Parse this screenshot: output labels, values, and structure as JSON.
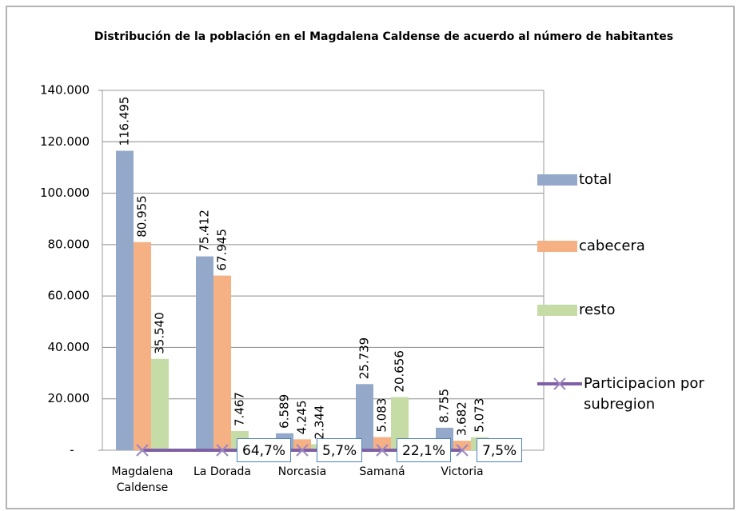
{
  "chart_data": {
    "type": "bar",
    "title": "Distribución de la población en el Magdalena Caldense de acuerdo al número de habitantes",
    "categories": [
      "Magdalena Caldense",
      "La Dorada",
      "Norcasia",
      "Samaná",
      "Victoria"
    ],
    "series": [
      {
        "name": "total",
        "color": "#94a9c9",
        "values": [
          116495,
          75412,
          6589,
          25739,
          8755
        ],
        "value_labels": [
          "116.495",
          "75.412",
          "6.589",
          "25.739",
          "8.755"
        ]
      },
      {
        "name": "cabecera",
        "color": "#f5b184",
        "values": [
          80955,
          67945,
          4245,
          5083,
          3682
        ],
        "value_labels": [
          "80.955",
          "67.945",
          "4.245",
          "5.083",
          "3.682"
        ]
      },
      {
        "name": "resto",
        "color": "#c6dca6",
        "values": [
          35540,
          7467,
          2344,
          20656,
          5073
        ],
        "value_labels": [
          "35.540",
          "7.467",
          "2.344",
          "20.656",
          "5.073"
        ]
      },
      {
        "name": "Participacion por subregion",
        "type": "line",
        "color": "#7f5fa6",
        "values": [
          1,
          0.647,
          0.057,
          0.221,
          0.075
        ],
        "value_labels": [
          null,
          "64,7%",
          "5,7%",
          "22,1%",
          "7,5%"
        ]
      }
    ],
    "ylim": [
      0,
      140000
    ],
    "yticks": [
      {
        "value": 0,
        "label": "-"
      },
      {
        "value": 20000,
        "label": "20.000"
      },
      {
        "value": 40000,
        "label": "40.000"
      },
      {
        "value": 60000,
        "label": "60.000"
      },
      {
        "value": 80000,
        "label": "80.000"
      },
      {
        "value": 100000,
        "label": "100.000"
      },
      {
        "value": 120000,
        "label": "120.000"
      },
      {
        "value": 140000,
        "label": "140.000"
      }
    ],
    "grid": true,
    "legend": "right"
  }
}
